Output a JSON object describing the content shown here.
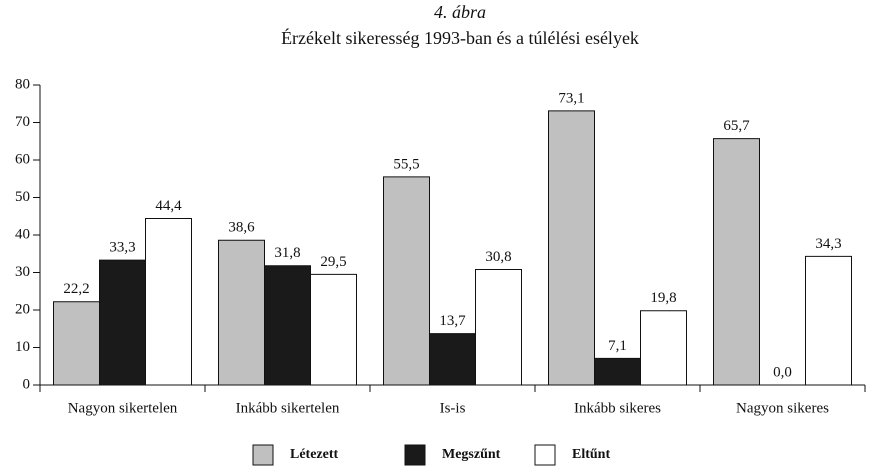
{
  "chart_data": {
    "type": "bar",
    "title": "4. ábra",
    "subtitle": "Érzékelt sikeresség 1993-ban és a túlélési esélyek",
    "categories": [
      "Nagyon sikertelen",
      "Inkább sikertelen",
      "Is-is",
      "Inkább sikeres",
      "Nagyon sikeres"
    ],
    "series": [
      {
        "name": "Létezett",
        "color": "#c0c0c0",
        "values": [
          22.2,
          38.6,
          55.5,
          73.1,
          65.7
        ],
        "value_labels": [
          "22,2",
          "38,6",
          "55,5",
          "73,1",
          "65,7"
        ]
      },
      {
        "name": "Megszűnt",
        "color": "#1a1a1a",
        "values": [
          33.3,
          31.8,
          13.7,
          7.1,
          0.0
        ],
        "value_labels": [
          "33,3",
          "31,8",
          "13,7",
          "7,1",
          "0,0"
        ]
      },
      {
        "name": "Eltűnt",
        "color": "#ffffff",
        "values": [
          44.4,
          29.5,
          30.8,
          19.8,
          34.3
        ],
        "value_labels": [
          "44,4",
          "29,5",
          "30,8",
          "19,8",
          "34,3"
        ]
      }
    ],
    "ylim": [
      0,
      80
    ],
    "yticks": [
      0,
      10,
      20,
      30,
      40,
      50,
      60,
      70,
      80
    ],
    "legend": "bottom"
  }
}
